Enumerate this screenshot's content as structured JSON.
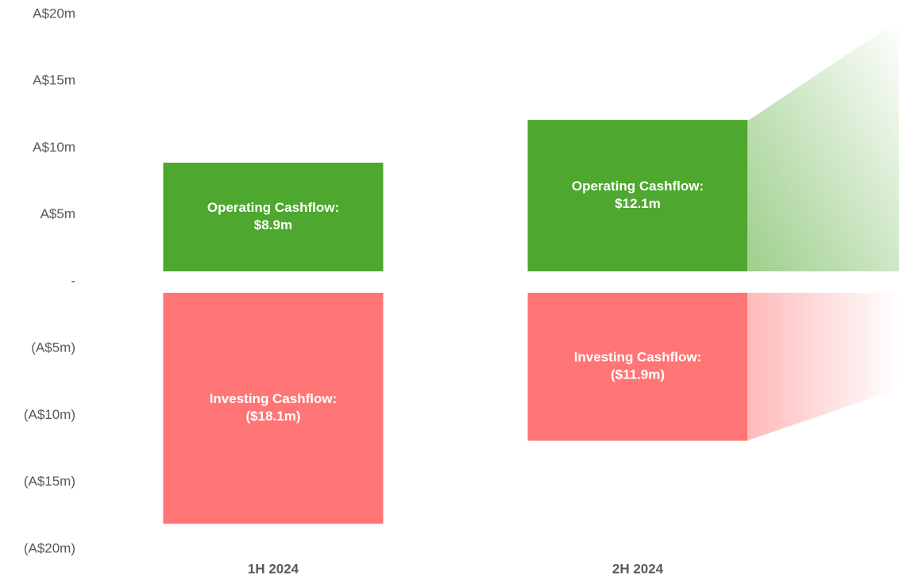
{
  "chart_data": {
    "type": "bar",
    "categories": [
      "1H 2024",
      "2H 2024"
    ],
    "series": [
      {
        "name": "Operating Cashflow:",
        "color": "#4ea72e",
        "values": [
          8.9,
          12.1
        ],
        "value_labels": [
          "$8.9m",
          "$12.1m"
        ]
      },
      {
        "name": "Investing Cashflow:",
        "color": "#ff7575",
        "values": [
          -18.1,
          -11.9
        ],
        "value_labels": [
          "($18.1m)",
          "($11.9m)"
        ]
      }
    ],
    "ylim": [
      -20,
      20
    ],
    "yticks": [
      {
        "value": 20,
        "label": "A$20m"
      },
      {
        "value": 15,
        "label": "A$15m"
      },
      {
        "value": 10,
        "label": "A$10m"
      },
      {
        "value": 5,
        "label": "A$5m"
      },
      {
        "value": 0,
        "label": "-"
      },
      {
        "value": -5,
        "label": "(A$5m)"
      },
      {
        "value": -10,
        "label": "(A$10m)"
      },
      {
        "value": -15,
        "label": "(A$15m)"
      },
      {
        "value": -20,
        "label": "(A$20m)"
      }
    ]
  }
}
